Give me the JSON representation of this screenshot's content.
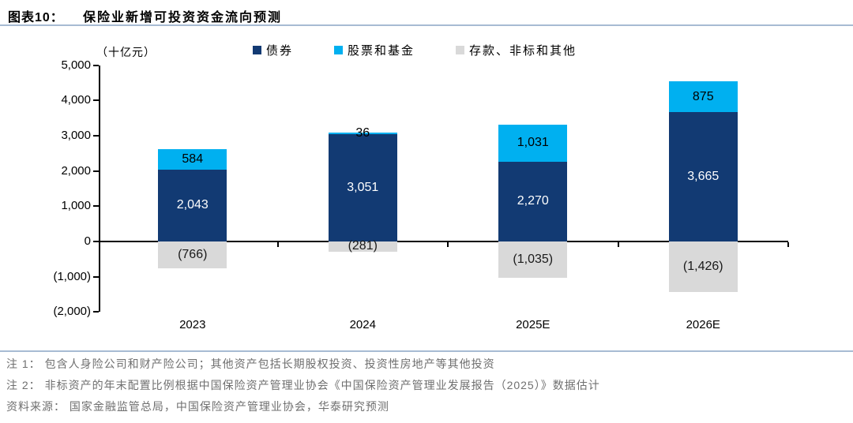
{
  "header": {
    "label": "图表10：",
    "title": "保险业新增可投资资金流向预测"
  },
  "chart_data": {
    "type": "bar",
    "stacked": true,
    "title": "保险业新增可投资资金流向预测",
    "unit_label": "（十亿元）",
    "categories": [
      "2023",
      "2024",
      "2025E",
      "2026E"
    ],
    "series": [
      {
        "name": "债券",
        "color": "#123a73",
        "label_color": "#ffffff",
        "values": [
          2043,
          3051,
          2270,
          3665
        ],
        "display": [
          "2,043",
          "3,051",
          "2,270",
          "3,665"
        ]
      },
      {
        "name": "股票和基金",
        "color": "#00b0f0",
        "label_color": "#000000",
        "values": [
          584,
          36,
          1031,
          875
        ],
        "display": [
          "584",
          "36",
          "1,031",
          "875"
        ]
      },
      {
        "name": "存款、非标和其他",
        "color": "#d9d9d9",
        "label_color": "#1a1a1a",
        "values": [
          -766,
          -281,
          -1035,
          -1426
        ],
        "display": [
          "(766)",
          "(281)",
          "(1,035)",
          "(1,426)"
        ]
      }
    ],
    "ylim": [
      -2000,
      5000
    ],
    "ytick_step": 1000,
    "yticks": [
      {
        "value": 5000,
        "label": "5,000"
      },
      {
        "value": 4000,
        "label": "4,000"
      },
      {
        "value": 3000,
        "label": "3,000"
      },
      {
        "value": 2000,
        "label": "2,000"
      },
      {
        "value": 1000,
        "label": "1,000"
      },
      {
        "value": 0,
        "label": "0"
      },
      {
        "value": -1000,
        "label": "(1,000)"
      },
      {
        "value": -2000,
        "label": "(2,000)"
      }
    ],
    "legend_position": "top",
    "grid": false,
    "axis_color": "#000000"
  },
  "footer": {
    "note1": "注 1： 包含人身险公司和财产险公司；其他资产包括长期股权投资、投资性房地产等其他投资",
    "note2": "注 2： 非标资产的年末配置比例根据中国保险资产管理业协会《中国保险资产管理业发展报告（2025）》数据估计",
    "source": "资料来源： 国家金融监管总局，中国保险资产管理业协会，华泰研究预测"
  }
}
